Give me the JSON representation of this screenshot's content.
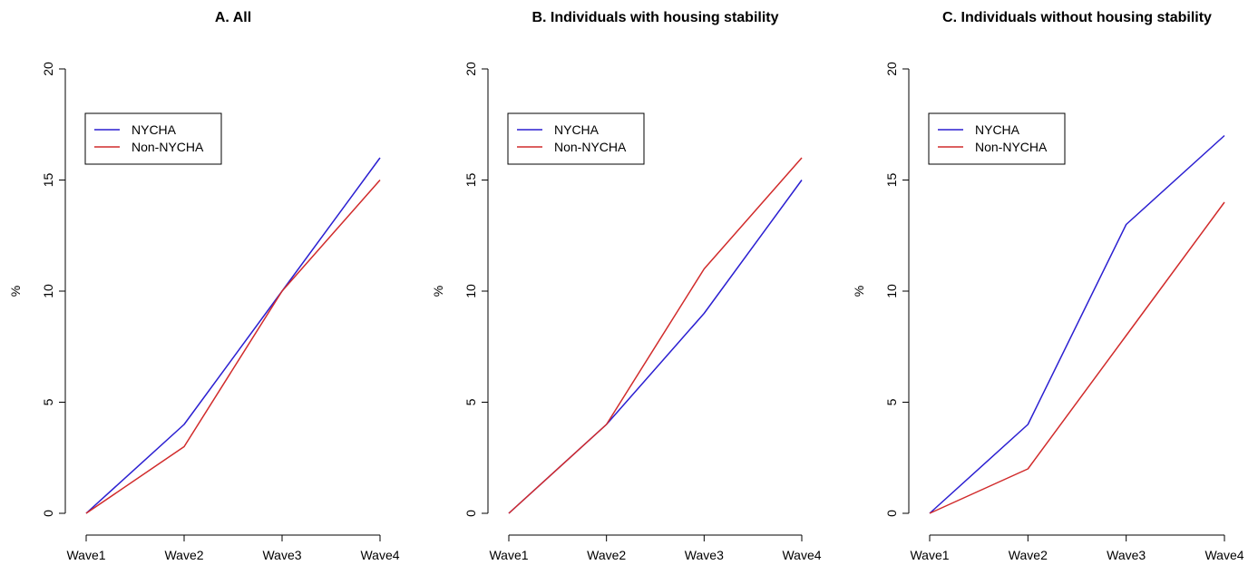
{
  "chart_data": [
    {
      "type": "line",
      "title": "A. All",
      "xlabel": "",
      "ylabel": "%",
      "categories": [
        "Wave1",
        "Wave2",
        "Wave3",
        "Wave4"
      ],
      "ylim": [
        0,
        20
      ],
      "yticks": [
        0,
        5,
        10,
        15,
        20
      ],
      "grid": false,
      "legend_position": "top-left",
      "series": [
        {
          "name": "NYCHA",
          "color": "#2b1fd1",
          "values": [
            0,
            4,
            10,
            16
          ]
        },
        {
          "name": "Non-NYCHA",
          "color": "#d12b2b",
          "values": [
            0,
            3,
            10,
            15
          ]
        }
      ]
    },
    {
      "type": "line",
      "title": "B. Individuals with housing stability",
      "xlabel": "",
      "ylabel": "%",
      "categories": [
        "Wave1",
        "Wave2",
        "Wave3",
        "Wave4"
      ],
      "ylim": [
        0,
        20
      ],
      "yticks": [
        0,
        5,
        10,
        15,
        20
      ],
      "grid": false,
      "legend_position": "top-left",
      "series": [
        {
          "name": "NYCHA",
          "color": "#2b1fd1",
          "values": [
            0,
            4,
            9,
            15
          ]
        },
        {
          "name": "Non-NYCHA",
          "color": "#d12b2b",
          "values": [
            0,
            4,
            11,
            16
          ]
        }
      ]
    },
    {
      "type": "line",
      "title": "C. Individuals without housing stability",
      "xlabel": "",
      "ylabel": "%",
      "categories": [
        "Wave1",
        "Wave2",
        "Wave3",
        "Wave4"
      ],
      "ylim": [
        0,
        20
      ],
      "yticks": [
        0,
        5,
        10,
        15,
        20
      ],
      "grid": false,
      "legend_position": "top-left",
      "series": [
        {
          "name": "NYCHA",
          "color": "#2b1fd1",
          "values": [
            0,
            4,
            13,
            17
          ]
        },
        {
          "name": "Non-NYCHA",
          "color": "#d12b2b",
          "values": [
            0,
            2,
            8,
            14
          ]
        }
      ]
    }
  ]
}
